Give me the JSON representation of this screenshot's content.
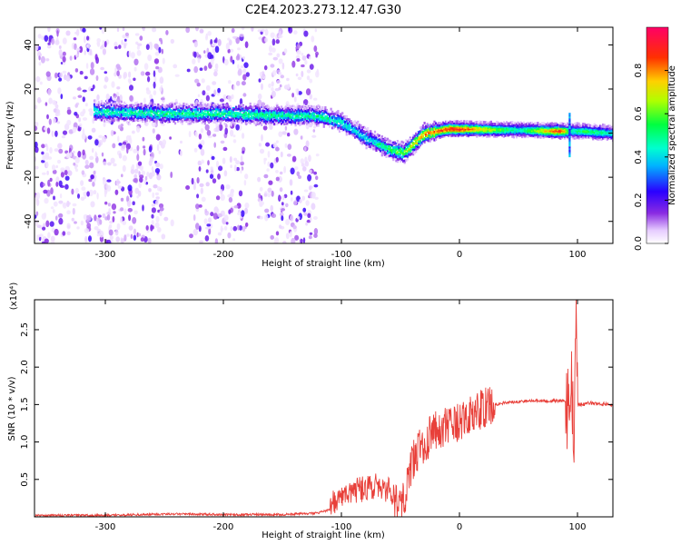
{
  "title": "C2E4.2023.273.12.47.G30",
  "chart_data": [
    {
      "type": "heatmap",
      "xlabel": "Height of straight line (km)",
      "ylabel": "Frequency (Hz)",
      "xlim": [
        -360,
        130
      ],
      "ylim": [
        -50,
        48
      ],
      "xticks": [
        -300,
        -200,
        -100,
        0,
        100
      ],
      "yticks": [
        40,
        20,
        0,
        -20,
        -40
      ],
      "colorbar": {
        "label": "Normalized spectral amplitude",
        "range": [
          0,
          1
        ],
        "ticks": [
          0.0,
          0.2,
          0.4,
          0.6,
          0.8
        ],
        "tick_labels": [
          "0.0",
          "0.2",
          "0.4",
          "0.6",
          "0.8"
        ],
        "colormap": "rainbow (white-purple-blue-cyan-green-yellow-red-magenta)"
      },
      "ridge": {
        "name": "carrier frequency track",
        "x": [
          -310,
          -250,
          -200,
          -150,
          -120,
          -100,
          -80,
          -60,
          -48,
          -40,
          -30,
          -20,
          -10,
          0,
          50,
          85,
          93,
          98,
          105,
          130
        ],
        "frequency": [
          10,
          9,
          9,
          8,
          8,
          5,
          -2,
          -7,
          -9,
          -5,
          0,
          1,
          2,
          2,
          1.5,
          1,
          1,
          1,
          1,
          0
        ],
        "amplitude": [
          0.45,
          0.5,
          0.5,
          0.5,
          0.5,
          0.45,
          0.4,
          0.55,
          0.6,
          0.7,
          0.8,
          0.85,
          0.9,
          0.9,
          0.45,
          0.9,
          0.5,
          0.5,
          0.55,
          0.45
        ]
      },
      "noise_regions": [
        {
          "x_from": -360,
          "x_to": -120,
          "level": "scattered low amplitude"
        }
      ],
      "grid": false
    },
    {
      "type": "line",
      "xlabel": "Height of straight line (km)",
      "ylabel": "SNR (10 * v/v)",
      "y_multiplier_label": "(x10⁴)",
      "xlim": [
        -360,
        130
      ],
      "ylim": [
        0,
        2.9
      ],
      "xticks": [
        -300,
        -200,
        -100,
        0,
        100
      ],
      "yticks": [
        0.5,
        1.0,
        1.5,
        2.0,
        2.5
      ],
      "ytick_labels": [
        "0.5",
        "1.0",
        "1.5",
        "2.0",
        "2.5"
      ],
      "color": "#e8403a",
      "series": [
        {
          "x": [
            -360,
            -300,
            -240,
            -200,
            -150,
            -120,
            -105,
            -100,
            -90,
            -80,
            -70,
            -60,
            -50,
            -45,
            -40,
            -30,
            -20,
            -10,
            0,
            10,
            20,
            30,
            40,
            60,
            80,
            90,
            93,
            95,
            97,
            99,
            100,
            105,
            110,
            130
          ],
          "y": [
            0.02,
            0.02,
            0.04,
            0.03,
            0.03,
            0.05,
            0.12,
            0.2,
            0.28,
            0.3,
            0.35,
            0.28,
            0.22,
            0.35,
            0.75,
            1.0,
            1.15,
            1.2,
            1.25,
            1.35,
            1.45,
            1.5,
            1.53,
            1.55,
            1.55,
            1.55,
            1.3,
            2.1,
            0.5,
            2.9,
            1.5,
            1.5,
            1.52,
            1.5
          ]
        }
      ],
      "grid": false
    }
  ]
}
